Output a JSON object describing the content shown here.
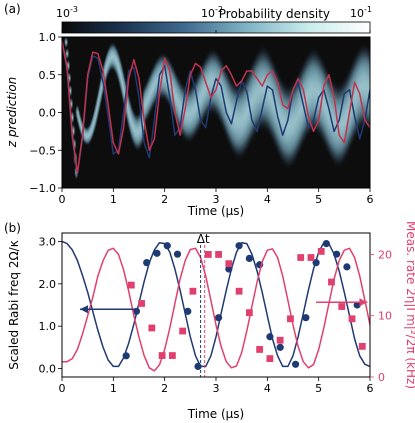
{
  "chart_data": [
    {
      "panel_label": "(a)",
      "type": "heatmap",
      "xlabel": "Time (µs)",
      "ylabel": "z prediction",
      "xlim": [
        0,
        6
      ],
      "ylim": [
        -1.0,
        1.0
      ],
      "x_ticks": [
        "0",
        "1",
        "2",
        "3",
        "4",
        "5",
        "6"
      ],
      "y_ticks": [
        "-1.0",
        "-0.5",
        "0.0",
        "0.5",
        "1.0"
      ],
      "colorbar": {
        "label": "Probability density",
        "scale": "log",
        "ticks": [
          "10",
          "10",
          "10"
        ],
        "tick_exponents": [
          "-3",
          "-2",
          "-1"
        ],
        "range": [
          0.001,
          0.1
        ],
        "colors": [
          "#0a0a0a",
          "#1c3552",
          "#3f6b8f",
          "#7fb3c4",
          "#c9ecec",
          "#ffffff"
        ]
      },
      "heatmap_description_colors": {
        "background": "#101010"
      },
      "series": [
        {
          "color": "#c0334d",
          "x": [
            0,
            0.1,
            0.2,
            0.3,
            0.4,
            0.5,
            0.6,
            0.7,
            0.8,
            0.9,
            1.0,
            1.1,
            1.2,
            1.3,
            1.4,
            1.5,
            1.6,
            1.7,
            1.8,
            1.9,
            2.0,
            2.1,
            2.2,
            2.3,
            2.4,
            2.5,
            2.6,
            2.7,
            2.8,
            2.9,
            3.0,
            3.1,
            3.2,
            3.3,
            3.4,
            3.5,
            3.6,
            3.7,
            3.8,
            3.9,
            4.0,
            4.1,
            4.2,
            4.3,
            4.4,
            4.5,
            4.6,
            4.7,
            4.8,
            4.9,
            5.0,
            5.1,
            5.2,
            5.3,
            5.4,
            5.5,
            5.6,
            5.7,
            5.8,
            5.9,
            6.0
          ],
          "values": [
            0.95,
            0.6,
            -0.3,
            -0.8,
            -0.3,
            0.5,
            0.8,
            0.78,
            0.55,
            0.1,
            -0.4,
            -0.55,
            -0.2,
            0.45,
            0.7,
            0.45,
            -0.1,
            -0.5,
            -0.35,
            0.25,
            0.72,
            0.55,
            0.0,
            -0.3,
            0.05,
            0.5,
            0.65,
            0.6,
            0.4,
            0.2,
            0.3,
            0.55,
            0.62,
            0.5,
            0.35,
            0.42,
            0.55,
            0.55,
            0.45,
            0.35,
            0.5,
            0.55,
            0.4,
            0.1,
            0.05,
            0.3,
            0.45,
            0.3,
            -0.05,
            -0.25,
            -0.1,
            0.35,
            0.5,
            0.2,
            -0.3,
            -0.4,
            0.0,
            0.4,
            0.25,
            -0.1,
            -0.2
          ]
        },
        {
          "color": "#1f3a73",
          "x": [
            0,
            0.1,
            0.2,
            0.3,
            0.4,
            0.5,
            0.6,
            0.7,
            0.8,
            0.9,
            1.0,
            1.1,
            1.2,
            1.3,
            1.4,
            1.5,
            1.6,
            1.7,
            1.8,
            1.9,
            2.0,
            2.1,
            2.2,
            2.3,
            2.4,
            2.5,
            2.6,
            2.7,
            2.8,
            2.9,
            3.0,
            3.1,
            3.2,
            3.3,
            3.4,
            3.5,
            3.6,
            3.7,
            3.8,
            3.9,
            4.0,
            4.1,
            4.2,
            4.3,
            4.4,
            4.5,
            4.6,
            4.7,
            4.8,
            4.9,
            5.0,
            5.1,
            5.2,
            5.3,
            5.4,
            5.5,
            5.6,
            5.7,
            5.8,
            5.9,
            6.0
          ],
          "values": [
            0.95,
            0.55,
            -0.35,
            -0.82,
            -0.35,
            0.45,
            0.75,
            0.72,
            0.4,
            -0.05,
            -0.55,
            -0.5,
            0.0,
            0.55,
            0.6,
            0.2,
            -0.4,
            -0.6,
            -0.1,
            0.5,
            0.62,
            0.2,
            -0.3,
            -0.2,
            0.3,
            0.55,
            0.3,
            -0.1,
            -0.2,
            0.2,
            0.45,
            0.35,
            0.0,
            -0.15,
            0.15,
            0.42,
            0.28,
            -0.1,
            -0.25,
            0.05,
            0.35,
            0.3,
            -0.05,
            -0.3,
            -0.1,
            0.3,
            0.4,
            0.1,
            -0.2,
            -0.1,
            0.2,
            0.3,
            0.05,
            -0.25,
            -0.1,
            0.25,
            0.3,
            -0.05,
            -0.35,
            -0.1,
            0.3
          ]
        }
      ]
    },
    {
      "panel_label": "(b)",
      "type": "line",
      "xlabel": "Time (µs)",
      "ylabel_left": "Scaled Rabi freq 2Ω/κ",
      "ylabel_right": "Meas. rate 2η|Γm|²/2π (kHz)",
      "xlim": [
        0,
        6
      ],
      "ylim_left": [
        -0.2,
        3.2
      ],
      "ylim_right": [
        0,
        23.5
      ],
      "x_ticks": [
        "0",
        "1",
        "2",
        "3",
        "4",
        "5",
        "6"
      ],
      "y_ticks_left": [
        "0.0",
        "1.0",
        "2.0",
        "3.0"
      ],
      "y_ticks_right": [
        "0",
        "10",
        "20"
      ],
      "annotation": "Δt",
      "annotation_x": 2.75,
      "dashed_lines_x": [
        2.7,
        2.78
      ],
      "series": [
        {
          "axis": "left",
          "kind": "line",
          "color": "#1f3a73",
          "x": [
            0,
            0.1,
            0.2,
            0.3,
            0.4,
            0.5,
            0.6,
            0.7,
            0.8,
            0.9,
            1.0,
            1.1,
            1.2,
            1.3,
            1.4,
            1.5,
            1.6,
            1.7,
            1.8,
            1.9,
            2.0,
            2.1,
            2.2,
            2.3,
            2.4,
            2.5,
            2.6,
            2.7,
            2.8,
            2.9,
            3.0,
            3.1,
            3.2,
            3.3,
            3.4,
            3.5,
            3.6,
            3.7,
            3.8,
            3.9,
            4.0,
            4.1,
            4.2,
            4.3,
            4.4,
            4.5,
            4.6,
            4.7,
            4.8,
            4.9,
            5.0,
            5.1,
            5.2,
            5.3,
            5.4,
            5.5,
            5.6,
            5.7,
            5.8,
            5.9,
            6.0
          ],
          "values": [
            3.0,
            2.95,
            2.8,
            2.55,
            2.2,
            1.8,
            1.35,
            0.9,
            0.5,
            0.2,
            0.05,
            0.05,
            0.25,
            0.6,
            1.05,
            1.55,
            2.05,
            2.5,
            2.8,
            2.97,
            2.95,
            2.75,
            2.35,
            1.85,
            1.3,
            0.75,
            0.3,
            0.05,
            0.05,
            0.3,
            0.75,
            1.3,
            1.85,
            2.35,
            2.75,
            2.97,
            2.95,
            2.7,
            2.3,
            1.8,
            1.25,
            0.7,
            0.3,
            0.05,
            0.05,
            0.3,
            0.75,
            1.3,
            1.85,
            2.35,
            2.75,
            2.97,
            2.95,
            2.7,
            2.3,
            1.8,
            1.25,
            0.7,
            0.3,
            0.1,
            0.05
          ]
        },
        {
          "axis": "left",
          "kind": "scatter",
          "color": "#1f3a73",
          "x": [
            1.25,
            1.45,
            1.65,
            1.85,
            2.05,
            2.25,
            2.45,
            2.65,
            3.05,
            3.25,
            3.45,
            3.65,
            3.85,
            4.05,
            4.25,
            4.55,
            4.75,
            4.95,
            5.15,
            5.35,
            5.55,
            5.75
          ],
          "values": [
            0.3,
            1.35,
            2.5,
            2.72,
            2.9,
            2.7,
            1.35,
            0.05,
            1.2,
            2.35,
            2.9,
            2.6,
            2.45,
            0.75,
            0.5,
            0.1,
            1.2,
            2.5,
            2.95,
            2.7,
            2.4,
            1.5
          ]
        },
        {
          "axis": "right",
          "kind": "line",
          "color": "#e0406e",
          "x": [
            0,
            0.1,
            0.2,
            0.3,
            0.4,
            0.5,
            0.6,
            0.7,
            0.8,
            0.9,
            1.0,
            1.1,
            1.2,
            1.3,
            1.4,
            1.5,
            1.6,
            1.7,
            1.8,
            1.9,
            2.0,
            2.1,
            2.2,
            2.3,
            2.4,
            2.5,
            2.6,
            2.7,
            2.8,
            2.9,
            3.0,
            3.1,
            3.2,
            3.3,
            3.4,
            3.5,
            3.6,
            3.7,
            3.8,
            3.9,
            4.0,
            4.1,
            4.2,
            4.3,
            4.4,
            4.5,
            4.6,
            4.7,
            4.8,
            4.9,
            5.0,
            5.1,
            5.2,
            5.3,
            5.4,
            5.5,
            5.6,
            5.7,
            5.8,
            5.9,
            6.0
          ],
          "values": [
            2.5,
            2.5,
            3.0,
            4.5,
            7.0,
            10.0,
            13.0,
            16.5,
            19.0,
            20.7,
            21.0,
            20.0,
            17.5,
            14.0,
            10.0,
            6.5,
            3.5,
            1.5,
            1.0,
            2.0,
            4.5,
            8.0,
            12.0,
            16.0,
            19.0,
            20.8,
            21.0,
            19.5,
            16.5,
            12.5,
            8.5,
            5.0,
            2.5,
            1.5,
            1.8,
            4.0,
            7.5,
            11.5,
            15.5,
            18.8,
            20.7,
            20.9,
            19.5,
            16.5,
            12.5,
            8.5,
            5.0,
            2.5,
            1.5,
            2.0,
            4.5,
            8.0,
            12.0,
            16.0,
            19.0,
            20.7,
            21.0,
            19.5,
            16.5,
            12.5,
            8.5
          ]
        },
        {
          "axis": "right",
          "kind": "scatter",
          "color": "#e0406e",
          "x": [
            1.35,
            1.55,
            1.75,
            1.95,
            2.15,
            2.35,
            2.55,
            2.85,
            3.05,
            3.25,
            3.45,
            3.65,
            3.85,
            4.05,
            4.25,
            4.45,
            4.65,
            4.85,
            5.05,
            5.25,
            5.45,
            5.65,
            5.85
          ],
          "values": [
            15,
            12,
            8,
            3.5,
            3.5,
            7.5,
            14,
            20,
            20,
            18.5,
            14,
            10.5,
            4.5,
            3,
            6,
            9.5,
            19.5,
            19.5,
            20.5,
            15.5,
            11.5,
            9.5,
            5
          ]
        }
      ],
      "arrows": [
        {
          "axis": "left",
          "direction": "left",
          "color": "#1f3a73",
          "from_x": 1.5,
          "to_x": 0.35,
          "y": 1.4
        },
        {
          "axis": "right",
          "direction": "right",
          "color": "#e0406e",
          "from_x": 4.95,
          "to_x": 5.95,
          "y": 12.2
        }
      ]
    }
  ]
}
